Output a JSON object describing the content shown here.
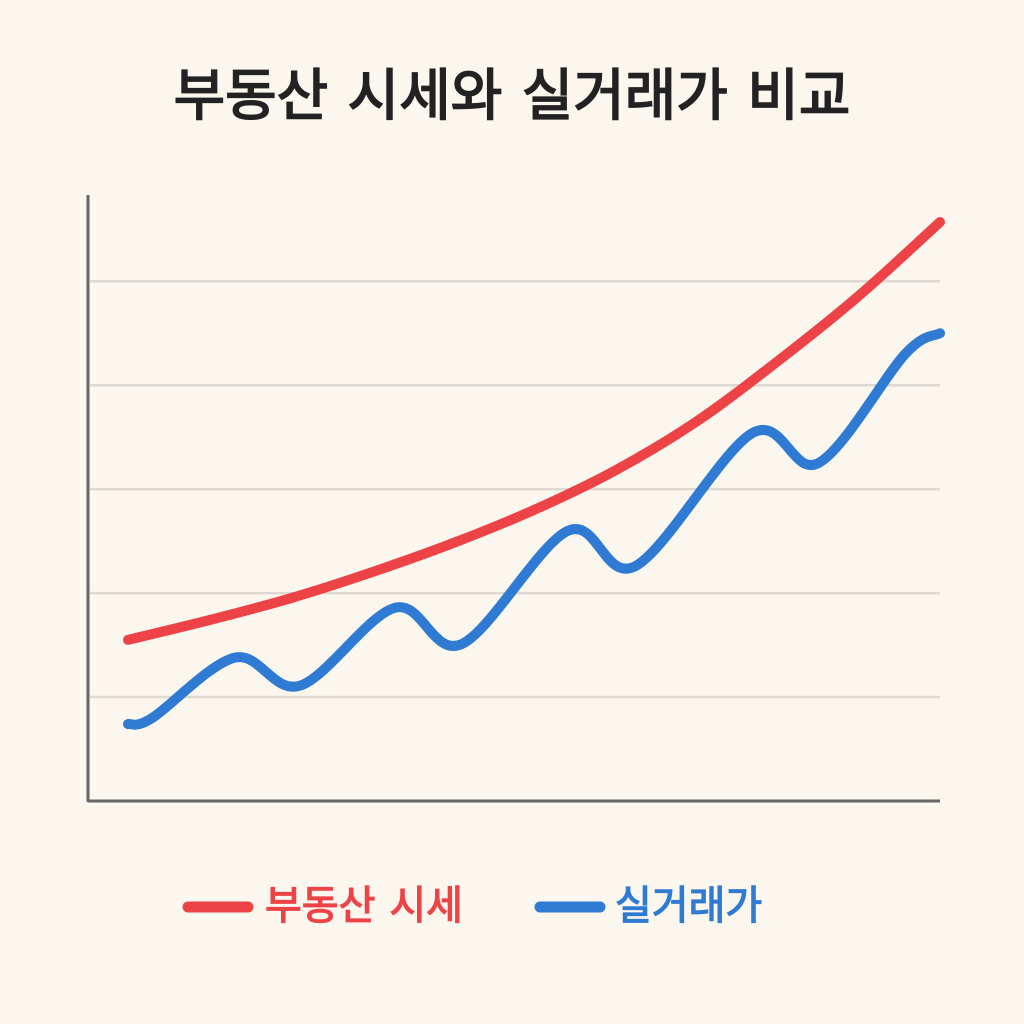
{
  "chart_data": {
    "type": "line",
    "title": "부동산 시세와 실거래가 비교",
    "xlim": [
      0,
      10
    ],
    "ylim": [
      0,
      5.83
    ],
    "yticks": [
      1,
      2,
      3,
      4,
      5
    ],
    "grid": true,
    "series": [
      {
        "name": "부동산 시세",
        "color": "#ee4346",
        "x": [
          0,
          1,
          2,
          3,
          4,
          5,
          6,
          7,
          8,
          9,
          10
        ],
        "values": [
          1.55,
          1.74,
          1.95,
          2.2,
          2.48,
          2.8,
          3.18,
          3.65,
          4.23,
          4.86,
          5.57
        ]
      },
      {
        "name": "실거래가",
        "color": "#2f7bd3",
        "x": [
          0,
          0.3,
          1.32,
          2.12,
          3.29,
          4.11,
          5.42,
          6.25,
          7.69,
          8.5,
          9.57,
          10
        ],
        "values": [
          0.74,
          0.8,
          1.38,
          1.11,
          1.86,
          1.51,
          2.6,
          2.26,
          3.54,
          3.25,
          4.3,
          4.5
        ]
      }
    ]
  }
}
